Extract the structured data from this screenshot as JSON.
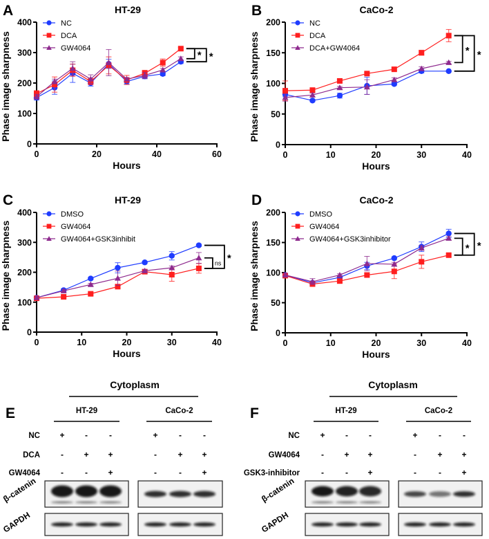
{
  "colors": {
    "blue": "#1f3cff",
    "red": "#ff1f1f",
    "purple": "#8e2a8e",
    "axis": "#000000"
  },
  "chart_data": [
    {
      "panel": "A",
      "type": "line",
      "title": "HT-29",
      "xlabel": "Hours",
      "ylabel": "Phase image sharpness",
      "xlim": [
        0,
        60
      ],
      "ylim": [
        0,
        400
      ],
      "xticks": [
        0,
        20,
        40,
        60
      ],
      "yticks": [
        0,
        100,
        200,
        300,
        400
      ],
      "x": [
        0,
        6,
        12,
        18,
        24,
        30,
        36,
        42,
        48
      ],
      "series": [
        {
          "name": "NC",
          "color": "blue",
          "marker": "circle",
          "values": [
            152,
            185,
            232,
            200,
            263,
            205,
            222,
            230,
            270
          ],
          "err": [
            8,
            22,
            30,
            10,
            15,
            8,
            8,
            6,
            6
          ]
        },
        {
          "name": "DCA",
          "color": "red",
          "marker": "square",
          "values": [
            165,
            195,
            242,
            205,
            258,
            210,
            232,
            267,
            313
          ],
          "err": [
            10,
            25,
            20,
            10,
            28,
            15,
            10,
            12,
            4
          ]
        },
        {
          "name": "GW4064",
          "color": "purple",
          "marker": "triangle",
          "values": [
            155,
            205,
            248,
            213,
            267,
            213,
            225,
            243,
            280
          ],
          "err": [
            8,
            8,
            22,
            14,
            43,
            5,
            10,
            5,
            6
          ]
        }
      ],
      "significance": [
        {
          "from": 1,
          "to": 2,
          "label": "*"
        },
        {
          "from": 1,
          "to": 0,
          "label": "*"
        }
      ]
    },
    {
      "panel": "B",
      "type": "line",
      "title": "CaCo-2",
      "xlabel": "Hours",
      "ylabel": "Phase image sharpness",
      "xlim": [
        0,
        40
      ],
      "ylim": [
        0,
        200
      ],
      "xticks": [
        0,
        10,
        20,
        30,
        40
      ],
      "yticks": [
        0,
        50,
        100,
        150,
        200
      ],
      "x": [
        0,
        6,
        12,
        18,
        24,
        30,
        36
      ],
      "series": [
        {
          "name": "NC",
          "color": "blue",
          "marker": "circle",
          "values": [
            82,
            72,
            80,
            96,
            99,
            120,
            120
          ],
          "err": [
            4,
            2,
            4,
            14,
            2,
            3,
            1
          ]
        },
        {
          "name": "DCA",
          "color": "red",
          "marker": "square",
          "values": [
            88,
            89,
            104,
            116,
            123,
            150,
            178
          ],
          "err": [
            16,
            2,
            2,
            2,
            2,
            4,
            10
          ]
        },
        {
          "name": "DCA+GW4064",
          "color": "purple",
          "marker": "triangle",
          "values": [
            77,
            81,
            93,
            94,
            106,
            124,
            134
          ],
          "err": [
            6,
            3,
            2,
            12,
            3,
            3,
            2
          ]
        }
      ],
      "significance": [
        {
          "from": 1,
          "to": 2,
          "label": "*"
        },
        {
          "from": 1,
          "to": 0,
          "label": "*"
        }
      ]
    },
    {
      "panel": "C",
      "type": "line",
      "title": "HT-29",
      "xlabel": "Hours",
      "ylabel": "Phase image sharpness",
      "xlim": [
        0,
        40
      ],
      "ylim": [
        0,
        400
      ],
      "xticks": [
        0,
        10,
        20,
        30,
        40
      ],
      "yticks": [
        0,
        100,
        200,
        300,
        400
      ],
      "x": [
        0,
        6,
        12,
        18,
        24,
        30,
        36
      ],
      "series": [
        {
          "name": "DMSO",
          "color": "blue",
          "marker": "circle",
          "values": [
            115,
            140,
            179,
            215,
            233,
            255,
            290
          ],
          "err": [
            4,
            5,
            4,
            17,
            4,
            14,
            4
          ]
        },
        {
          "name": "GW4064",
          "color": "red",
          "marker": "square",
          "values": [
            113,
            118,
            128,
            152,
            202,
            192,
            213
          ],
          "err": [
            4,
            4,
            4,
            6,
            6,
            22,
            16
          ]
        },
        {
          "name": "GW4064+GSK3inhibit",
          "color": "purple",
          "marker": "triangle",
          "values": [
            115,
            138,
            159,
            180,
            205,
            215,
            248
          ],
          "err": [
            4,
            4,
            4,
            24,
            4,
            6,
            18
          ]
        }
      ],
      "significance": [
        {
          "from": 2,
          "to": 1,
          "label": "ns"
        },
        {
          "from": 0,
          "to": 1,
          "label": "*"
        }
      ]
    },
    {
      "panel": "D",
      "type": "line",
      "title": "CaCo-2",
      "xlabel": "Hours",
      "ylabel": "Phase image sharpness",
      "xlim": [
        0,
        40
      ],
      "ylim": [
        0,
        200
      ],
      "xticks": [
        0,
        10,
        20,
        30,
        40
      ],
      "yticks": [
        0,
        50,
        100,
        150,
        200
      ],
      "x": [
        0,
        6,
        12,
        18,
        24,
        30,
        36
      ],
      "series": [
        {
          "name": "DMSO",
          "color": "blue",
          "marker": "circle",
          "values": [
            96,
            83,
            92,
            111,
            124,
            143,
            165
          ],
          "err": [
            2,
            3,
            3,
            6,
            2,
            8,
            7
          ]
        },
        {
          "name": "GW4064",
          "color": "red",
          "marker": "square",
          "values": [
            95,
            81,
            86,
            96,
            102,
            118,
            129
          ],
          "err": [
            2,
            2,
            2,
            3,
            12,
            11,
            2
          ]
        },
        {
          "name": "GW4064+GSK3inhibitor",
          "color": "purple",
          "marker": "triangle",
          "values": [
            96,
            85,
            96,
            115,
            114,
            141,
            157
          ],
          "err": [
            2,
            5,
            2,
            12,
            3,
            4,
            3
          ]
        }
      ],
      "significance": [
        {
          "from": 2,
          "to": 1,
          "label": "*"
        },
        {
          "from": 0,
          "to": 1,
          "label": "*"
        }
      ]
    }
  ],
  "blots": [
    {
      "panel": "E",
      "compartment": "Cytoplasm",
      "cell_lines": [
        "HT-29",
        "CaCo-2"
      ],
      "conditions": [
        {
          "label": "NC",
          "signs": [
            "+",
            "-",
            "-",
            "+",
            "-",
            "-"
          ]
        },
        {
          "label": "DCA",
          "signs": [
            "-",
            "+",
            "+",
            "-",
            "+",
            "+"
          ]
        },
        {
          "label": "GW4064",
          "signs": [
            "-",
            "-",
            "+",
            "-",
            "-",
            "+"
          ]
        }
      ],
      "proteins": [
        "β-catenin",
        "GAPDH"
      ]
    },
    {
      "panel": "F",
      "compartment": "Cytoplasm",
      "cell_lines": [
        "HT-29",
        "CaCo-2"
      ],
      "conditions": [
        {
          "label": "NC",
          "signs": [
            "+",
            "-",
            "-",
            "+",
            "-",
            "-"
          ]
        },
        {
          "label": "GW4064",
          "signs": [
            "-",
            "+",
            "+",
            "-",
            "+",
            "+"
          ]
        },
        {
          "label": "GSK3-inhibitor",
          "signs": [
            "-",
            "-",
            "+",
            "-",
            "-",
            "+"
          ]
        }
      ],
      "proteins": [
        "β-catenin",
        "GAPDH"
      ]
    }
  ]
}
